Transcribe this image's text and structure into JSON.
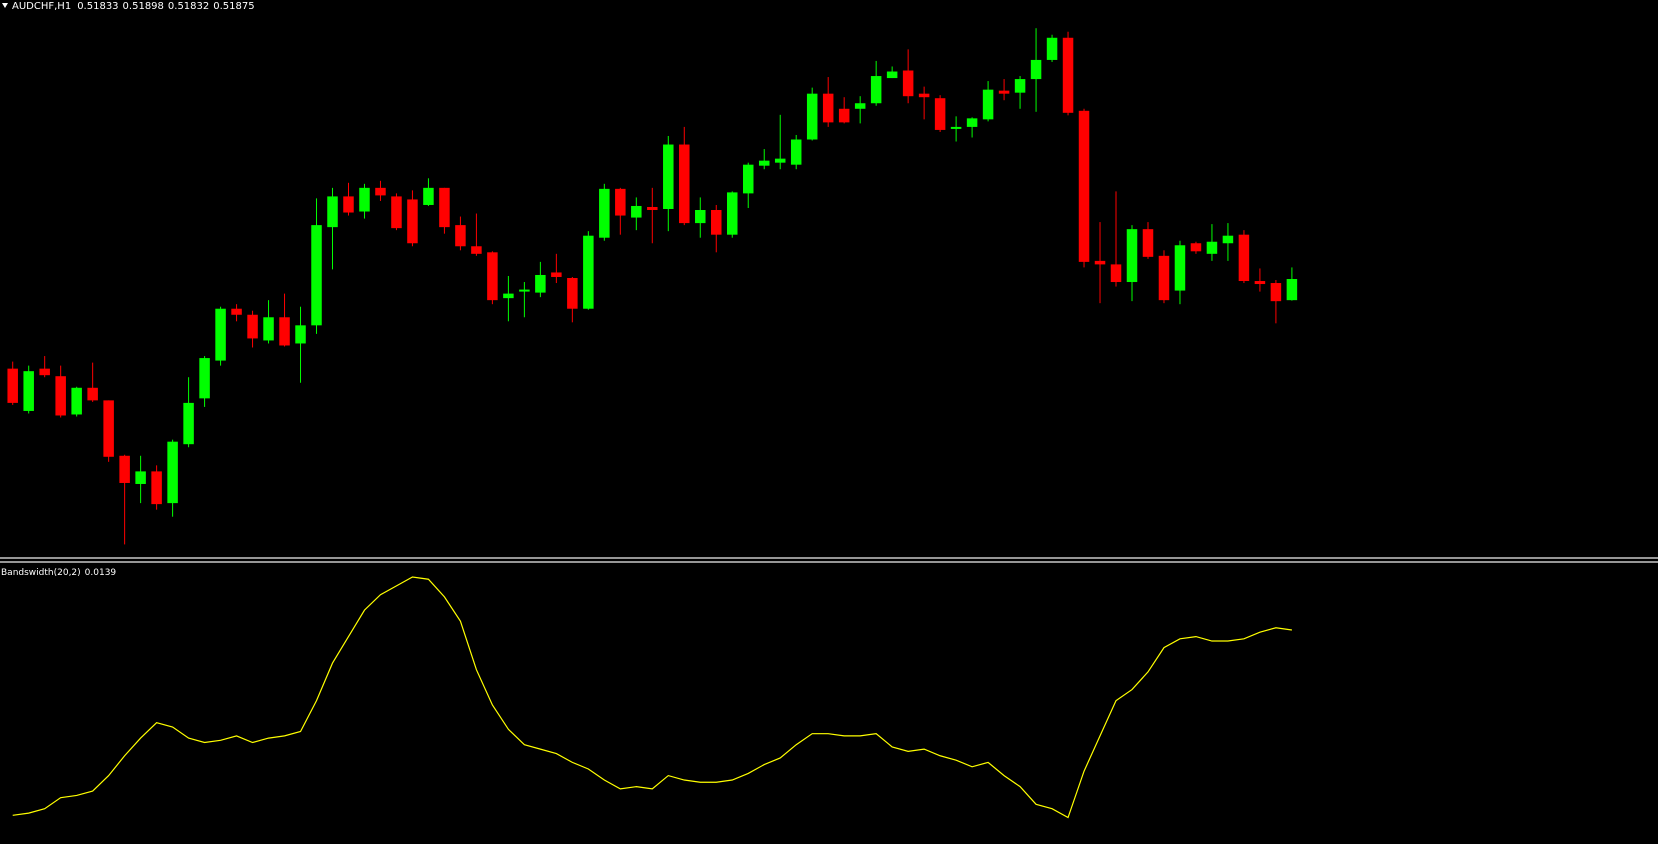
{
  "chart_data": [
    {
      "type": "candlestick",
      "title": "AUDCHF,H1",
      "up_color": "#00ff00",
      "down_color": "#ff0000",
      "open": [
        0.51697,
        0.51613,
        0.51697,
        0.51682,
        0.51606,
        0.51659,
        0.51634,
        0.51524,
        0.51468,
        0.51493,
        0.5143,
        0.51547,
        0.51638,
        0.51713,
        0.51816,
        0.51804,
        0.51753,
        0.51799,
        0.51747,
        0.51783,
        0.51978,
        0.52039,
        0.52009,
        0.52056,
        0.52039,
        0.52033,
        0.52022,
        0.52056,
        0.51982,
        0.5194,
        0.51928,
        0.51837,
        0.5185,
        0.51848,
        0.51888,
        0.51877,
        0.51816,
        0.51957,
        0.52054,
        0.51997,
        0.52018,
        0.52014,
        0.52142,
        0.51986,
        0.52012,
        0.51963,
        0.52045,
        0.521,
        0.52106,
        0.52102,
        0.52152,
        0.52243,
        0.52213,
        0.52213,
        0.52224,
        0.52274,
        0.52289,
        0.52243,
        0.52234,
        0.52173,
        0.52177,
        0.52192,
        0.52249,
        0.52245,
        0.52272,
        0.5231,
        0.52354,
        0.52209,
        0.51911,
        0.51904,
        0.51869,
        0.51974,
        0.51921,
        0.51852,
        0.51946,
        0.51925,
        0.51946,
        0.51963,
        0.51871,
        0.51867,
        0.51833
      ],
      "high": [
        0.51711,
        0.51703,
        0.51722,
        0.51703,
        0.51661,
        0.51709,
        0.51634,
        0.51526,
        0.51524,
        0.51505,
        0.51556,
        0.5168,
        0.51722,
        0.5182,
        0.51825,
        0.51812,
        0.51833,
        0.51846,
        0.5182,
        0.52035,
        0.52056,
        0.52066,
        0.52064,
        0.5207,
        0.52045,
        0.52051,
        0.52075,
        0.52056,
        0.51999,
        0.52005,
        0.5193,
        0.51881,
        0.51869,
        0.51909,
        0.51925,
        0.51879,
        0.5197,
        0.52064,
        0.52056,
        0.52037,
        0.52056,
        0.52159,
        0.52177,
        0.52037,
        0.52022,
        0.52049,
        0.52106,
        0.52133,
        0.52201,
        0.52161,
        0.52255,
        0.52276,
        0.52236,
        0.52238,
        0.52308,
        0.52297,
        0.52331,
        0.52257,
        0.5224,
        0.52198,
        0.52196,
        0.52268,
        0.52272,
        0.52278,
        0.52373,
        0.5236,
        0.52366,
        0.52213,
        0.51988,
        0.52049,
        0.51982,
        0.51988,
        0.51932,
        0.51951,
        0.51949,
        0.51984,
        0.51986,
        0.51972,
        0.51896,
        0.51873,
        0.51898
      ],
      "low": [
        0.51625,
        0.51608,
        0.5168,
        0.516,
        0.51602,
        0.51631,
        0.51512,
        0.51348,
        0.5143,
        0.51417,
        0.51403,
        0.51541,
        0.51621,
        0.51703,
        0.51791,
        0.51739,
        0.51747,
        0.51741,
        0.51669,
        0.51766,
        0.51894,
        0.52001,
        0.51995,
        0.5203,
        0.51972,
        0.5194,
        0.5202,
        0.51965,
        0.51932,
        0.51921,
        0.51825,
        0.51791,
        0.51799,
        0.51839,
        0.51867,
        0.51789,
        0.51814,
        0.51951,
        0.51963,
        0.51972,
        0.51946,
        0.5197,
        0.51982,
        0.51957,
        0.51928,
        0.51957,
        0.52016,
        0.52093,
        0.52093,
        0.52093,
        0.5215,
        0.52177,
        0.52184,
        0.52184,
        0.52219,
        0.52274,
        0.52224,
        0.52192,
        0.52167,
        0.52148,
        0.52156,
        0.52188,
        0.5223,
        0.52213,
        0.52207,
        0.52306,
        0.522,
        0.51898,
        0.51827,
        0.5186,
        0.51831,
        0.51915,
        0.51827,
        0.51825,
        0.51925,
        0.51911,
        0.51911,
        0.51867,
        0.5185,
        0.51787,
        0.51832
      ],
      "close": [
        0.51629,
        0.51692,
        0.51684,
        0.51604,
        0.51659,
        0.51634,
        0.51522,
        0.5147,
        0.51493,
        0.51428,
        0.51552,
        0.51629,
        0.51718,
        0.51816,
        0.51804,
        0.51757,
        0.51799,
        0.51743,
        0.51783,
        0.51982,
        0.52039,
        0.52007,
        0.52056,
        0.52041,
        0.51976,
        0.51946,
        0.52056,
        0.51978,
        0.5194,
        0.51925,
        0.51833,
        0.51846,
        0.51854,
        0.51883,
        0.51879,
        0.51816,
        0.51961,
        0.52054,
        0.52001,
        0.5202,
        0.52012,
        0.52142,
        0.51986,
        0.52012,
        0.51963,
        0.52047,
        0.52102,
        0.5211,
        0.52114,
        0.52152,
        0.52243,
        0.52186,
        0.52186,
        0.52224,
        0.52278,
        0.52287,
        0.52238,
        0.52236,
        0.52171,
        0.52177,
        0.52194,
        0.52251,
        0.52243,
        0.52272,
        0.5231,
        0.52354,
        0.52205,
        0.51909,
        0.51904,
        0.51869,
        0.51974,
        0.51919,
        0.51833,
        0.51942,
        0.5193,
        0.51949,
        0.51961,
        0.51871,
        0.51865,
        0.51831,
        0.51875
      ],
      "ylim": [
        0.51323,
        0.52429
      ]
    },
    {
      "type": "line",
      "title": "Bandswidth(20,2)",
      "color": "#ffff00",
      "values": [
        0.0055,
        0.0056,
        0.0058,
        0.0063,
        0.0064,
        0.0066,
        0.0073,
        0.0082,
        0.009,
        0.0097,
        0.0095,
        0.009,
        0.0088,
        0.0089,
        0.0091,
        0.0088,
        0.009,
        0.0091,
        0.0093,
        0.0107,
        0.0124,
        0.0136,
        0.0148,
        0.0155,
        0.0159,
        0.0163,
        0.0162,
        0.0154,
        0.0143,
        0.0121,
        0.0105,
        0.0094,
        0.0087,
        0.0085,
        0.0083,
        0.0079,
        0.0076,
        0.0071,
        0.0067,
        0.0068,
        0.0067,
        0.0073,
        0.0071,
        0.007,
        0.007,
        0.0071,
        0.0074,
        0.0078,
        0.0081,
        0.0087,
        0.0092,
        0.0092,
        0.0091,
        0.0091,
        0.0092,
        0.0086,
        0.0084,
        0.0085,
        0.0082,
        0.008,
        0.0077,
        0.0079,
        0.0073,
        0.0068,
        0.006,
        0.0058,
        0.0054,
        0.0075,
        0.0091,
        0.0107,
        0.0112,
        0.012,
        0.0131,
        0.0135,
        0.0136,
        0.0134,
        0.0134,
        0.0135,
        0.0138,
        0.014,
        0.0139
      ],
      "ylim": [
        0.0042,
        0.0168
      ]
    }
  ]
}
